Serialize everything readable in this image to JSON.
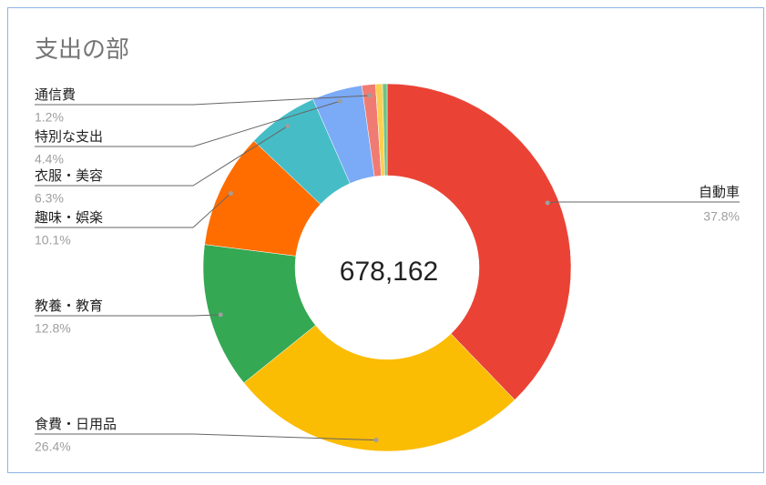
{
  "chart_data": {
    "type": "donut",
    "title": "支出の部",
    "center_label": "678,162",
    "categories": [
      "自動車",
      "食費・日用品",
      "教養・教育",
      "趣味・娯楽",
      "衣服・美容",
      "特別な支出",
      "通信費",
      null,
      null
    ],
    "values": [
      37.8,
      26.4,
      12.8,
      10.1,
      6.3,
      4.4,
      1.2,
      0.6,
      0.4
    ],
    "value_labels": [
      "37.8%",
      "26.4%",
      "12.8%",
      "10.1%",
      "6.3%",
      "4.4%",
      "1.2%",
      null,
      null
    ],
    "colors": [
      "#ea4335",
      "#fbbc04",
      "#34a853",
      "#ff6d01",
      "#46bdc6",
      "#7baaf7",
      "#f07b72",
      "#fcd04f",
      "#71c287"
    ]
  }
}
